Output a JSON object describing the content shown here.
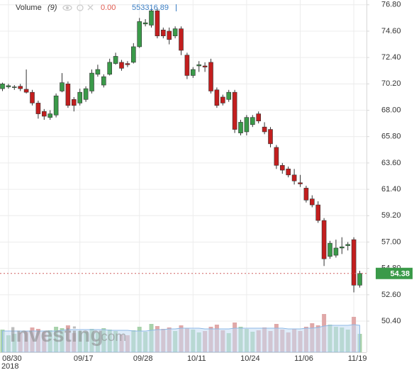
{
  "chart_data": {
    "type": "candlestick",
    "legend": {
      "label": "Volume",
      "period": "(9)",
      "value1": "0.00",
      "value2": "553316.89"
    },
    "logo": {
      "name": "Investing",
      "suffix": ".com"
    },
    "x_year_label": "2018",
    "categories": [
      null,
      "08/30",
      null,
      null,
      null,
      null,
      null,
      null,
      null,
      null,
      null,
      null,
      null,
      "09/17",
      null,
      null,
      null,
      null,
      null,
      null,
      null,
      null,
      null,
      "09/28",
      null,
      null,
      null,
      null,
      null,
      null,
      null,
      null,
      "10/11",
      null,
      null,
      null,
      null,
      null,
      null,
      null,
      null,
      "10/24",
      null,
      null,
      null,
      null,
      null,
      null,
      null,
      null,
      "11/06",
      null,
      null,
      null,
      null,
      null,
      null,
      null,
      null,
      "11/19",
      null
    ],
    "open": [
      69.8,
      69.95,
      69.9,
      70.0,
      69.75,
      69.5,
      68.6,
      67.9,
      67.4,
      67.6,
      69.6,
      70.2,
      68.9,
      68.6,
      68.9,
      69.6,
      71.0,
      70.1,
      71.0,
      71.9,
      72.0,
      71.9,
      72.0,
      73.3,
      75.2,
      75.1,
      76.3,
      74.7,
      74.6,
      74.2,
      74.8,
      72.6,
      70.9,
      71.7,
      71.7,
      72.0,
      69.7,
      69.1,
      68.9,
      69.5,
      66.1,
      66.2,
      66.8,
      67.7,
      66.6,
      66.4,
      64.9,
      63.4,
      63.1,
      62.6,
      61.95,
      61.5,
      60.6,
      60.1,
      58.8,
      55.8,
      55.9,
      56.5,
      56.7,
      57.2,
      53.4
    ],
    "high": [
      70.3,
      70.2,
      70.1,
      70.2,
      71.4,
      69.7,
      68.8,
      68.1,
      68.0,
      69.4,
      71.1,
      70.4,
      69.1,
      69.8,
      70.0,
      71.4,
      71.8,
      71.0,
      72.3,
      72.8,
      72.2,
      72.1,
      73.6,
      75.7,
      75.6,
      76.5,
      76.5,
      74.9,
      74.9,
      75.0,
      75.0,
      72.8,
      71.6,
      72.1,
      72.0,
      72.3,
      69.9,
      69.3,
      69.7,
      69.7,
      67.2,
      67.6,
      67.6,
      67.9,
      67.0,
      66.6,
      65.1,
      63.6,
      63.3,
      63.1,
      62.6,
      61.7,
      60.9,
      60.4,
      59.0,
      57.1,
      57.2,
      57.4,
      57.0,
      57.4,
      54.6
    ],
    "low": [
      69.6,
      69.8,
      69.7,
      69.6,
      69.4,
      68.4,
      67.3,
      67.2,
      67.2,
      67.4,
      69.5,
      68.2,
      67.9,
      68.4,
      68.7,
      69.4,
      70.8,
      69.9,
      70.9,
      71.8,
      71.3,
      71.6,
      71.9,
      73.2,
      75.0,
      74.9,
      74.0,
      74.0,
      73.5,
      74.0,
      72.6,
      70.6,
      70.7,
      71.2,
      71.2,
      69.4,
      68.2,
      68.4,
      68.7,
      66.1,
      65.9,
      65.9,
      66.6,
      66.9,
      66.0,
      64.9,
      63.1,
      62.7,
      62.4,
      61.8,
      61.6,
      60.3,
      59.9,
      58.6,
      55.0,
      55.6,
      55.7,
      56.0,
      56.3,
      52.8,
      53.2
    ],
    "close": [
      70.2,
      70.05,
      69.95,
      69.8,
      69.5,
      68.6,
      67.7,
      67.5,
      67.7,
      69.2,
      70.3,
      68.4,
      68.4,
      69.5,
      69.8,
      71.1,
      71.4,
      70.8,
      72.0,
      72.5,
      71.5,
      71.8,
      73.3,
      75.4,
      75.3,
      76.3,
      74.2,
      74.2,
      73.9,
      74.8,
      73.0,
      70.9,
      71.4,
      71.8,
      71.6,
      69.6,
      68.4,
      68.6,
      69.5,
      66.4,
      67.0,
      67.4,
      67.4,
      67.1,
      66.2,
      65.2,
      63.4,
      63.0,
      62.6,
      62.1,
      61.85,
      60.5,
      60.1,
      58.8,
      55.6,
      56.9,
      56.5,
      56.6,
      56.8,
      53.4,
      54.38
    ],
    "volume": [
      3.2,
      2.4,
      2.6,
      2.8,
      3.0,
      3.5,
      3.3,
      2.9,
      3.1,
      3.6,
      3.4,
      3.8,
      2.7,
      3.0,
      2.9,
      3.3,
      2.8,
      3.4,
      3.2,
      3.0,
      2.5,
      2.4,
      3.1,
      3.6,
      2.9,
      4.0,
      3.7,
      3.3,
      3.5,
      3.0,
      3.8,
      3.4,
      3.2,
      2.8,
      3.0,
      3.6,
      3.9,
      3.1,
      2.7,
      4.2,
      3.6,
      3.3,
      2.9,
      3.1,
      3.5,
      3.0,
      4.0,
      3.2,
      2.8,
      3.3,
      3.0,
      3.6,
      4.1,
      3.8,
      5.4,
      3.9,
      3.6,
      3.5,
      3.2,
      5.0,
      2.6
    ],
    "volume_ma": [
      3.0,
      3.0,
      3.0,
      3.0,
      3.0,
      3.0,
      3.0,
      3.0,
      3.0,
      3.0,
      3.1,
      3.2,
      3.2,
      3.2,
      3.2,
      3.2,
      3.2,
      3.2,
      3.1,
      3.1,
      3.1,
      3.1,
      3.0,
      3.0,
      3.0,
      3.1,
      3.2,
      3.2,
      3.3,
      3.3,
      3.4,
      3.4,
      3.4,
      3.4,
      3.3,
      3.3,
      3.3,
      3.3,
      3.3,
      3.4,
      3.4,
      3.4,
      3.4,
      3.4,
      3.4,
      3.4,
      3.4,
      3.4,
      3.3,
      3.3,
      3.3,
      3.4,
      3.4,
      3.5,
      3.7,
      3.8,
      3.8,
      3.8,
      3.8,
      3.9,
      3.8
    ],
    "ylim": [
      47.8,
      77.2
    ],
    "yticks": [
      {
        "value": 50.4,
        "label": "50.40"
      },
      {
        "value": 52.6,
        "label": "52.60"
      },
      {
        "value": 54.8,
        "label": "54.80"
      },
      {
        "value": 57,
        "label": "57.00"
      },
      {
        "value": 59.2,
        "label": "59.20"
      },
      {
        "value": 61.4,
        "label": "61.40"
      },
      {
        "value": 63.6,
        "label": "63.60"
      },
      {
        "value": 65.8,
        "label": "65.80"
      },
      {
        "value": 68,
        "label": "68.00"
      },
      {
        "value": 70.2,
        "label": "70.20"
      },
      {
        "value": 72.4,
        "label": "72.40"
      },
      {
        "value": 74.6,
        "label": "74.60"
      },
      {
        "value": 76.8,
        "label": "76.80"
      }
    ],
    "y2lim": [
      0,
      10
    ],
    "last_price": 54.38,
    "grid": true,
    "up_color": "#3a9a49",
    "down_color": "#c31e1e",
    "volume_up_color": "#a8d2ab",
    "volume_down_color": "#e0a8a8",
    "volume_ma_color": "#c4dcf4",
    "last_price_color": "#3a9a49"
  }
}
